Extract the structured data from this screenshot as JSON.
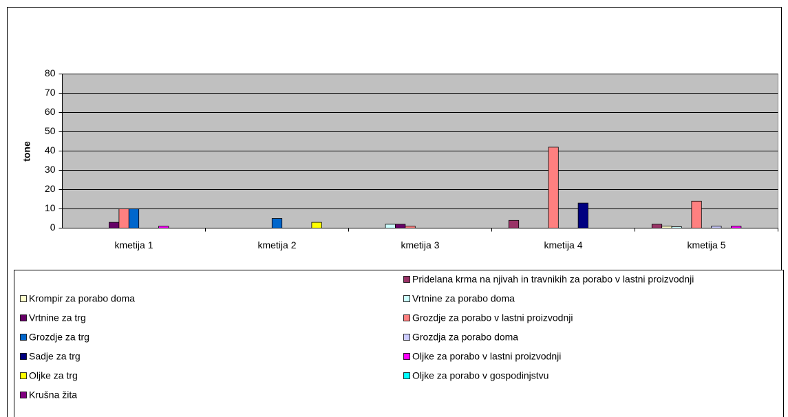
{
  "chart_data": {
    "type": "bar",
    "y_label": "tone",
    "categories": [
      "kmetija 1",
      "kmetija 2",
      "kmetija 3",
      "kmetija 4",
      "kmetija 5"
    ],
    "ylim": [
      0,
      80
    ],
    "yticks": [
      0,
      10,
      20,
      30,
      40,
      50,
      60,
      70,
      80
    ],
    "grid": true,
    "series": [
      {
        "name": "Pridelana krma na njivah in travnikih za porabo v lastni proizvodnji",
        "color": "#993366",
        "values": [
          0,
          0,
          0,
          4,
          2
        ]
      },
      {
        "name": "Krompir za porabo doma",
        "color": "#FFFFCC",
        "values": [
          0,
          0,
          0,
          0,
          1
        ]
      },
      {
        "name": "Vrtnine za porabo doma",
        "color": "#CCFFFF",
        "values": [
          0,
          0,
          2,
          0,
          0.7
        ]
      },
      {
        "name": "Vrtnine za trg",
        "color": "#660066",
        "values": [
          3,
          0,
          2,
          0,
          0
        ]
      },
      {
        "name": "Grozdje za porabo v lastni proizvodnji",
        "color": "#FF8080",
        "values": [
          10,
          0,
          1,
          42,
          14
        ]
      },
      {
        "name": "Grozdje za trg",
        "color": "#0066CC",
        "values": [
          10,
          5,
          0,
          0,
          0
        ]
      },
      {
        "name": "Grozdja za porabo doma",
        "color": "#CCCCFF",
        "values": [
          0,
          0,
          0,
          0,
          1
        ]
      },
      {
        "name": "Sadje za trg",
        "color": "#000080",
        "values": [
          0,
          0,
          0,
          13,
          0
        ]
      },
      {
        "name": "Oljke za porabo v lastni proizvodnji",
        "color": "#FF00FF",
        "values": [
          1,
          0,
          0,
          0,
          1
        ]
      },
      {
        "name": "Oljke za trg",
        "color": "#FFFF00",
        "values": [
          0,
          3,
          0,
          0,
          0
        ]
      },
      {
        "name": "Oljke za porabo v gospodinjstvu",
        "color": "#00FFFF",
        "values": [
          0,
          0,
          0,
          0,
          0
        ]
      },
      {
        "name": "Krušna žita",
        "color": "#800080",
        "values": [
          0,
          0,
          0,
          0,
          0
        ]
      }
    ]
  }
}
